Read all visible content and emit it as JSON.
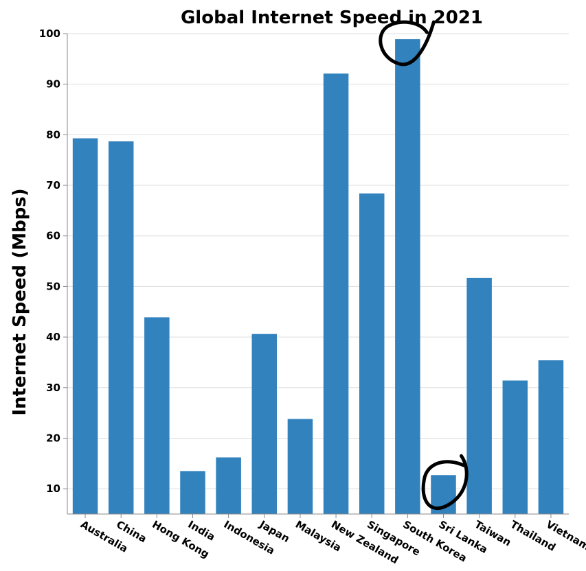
{
  "chart_data": {
    "type": "bar",
    "title": "Global Internet Speed in 2021",
    "xlabel": "",
    "ylabel": "Internet Speed (Mbps)",
    "categories": [
      "Australia",
      "China",
      "Hong Kong",
      "India",
      "Indonesia",
      "Japan",
      "Malaysia",
      "New Zealand",
      "Singapore",
      "South Korea",
      "Sri Lanka",
      "Taiwan",
      "Thailand",
      "Vietnam"
    ],
    "values": [
      79.3,
      78.7,
      43.9,
      13.5,
      16.2,
      40.6,
      23.8,
      92.1,
      68.4,
      98.9,
      12.7,
      51.7,
      31.4,
      35.4
    ],
    "ylim": [
      5,
      100
    ],
    "yticks": [
      "10",
      "20",
      "30",
      "40",
      "50",
      "60",
      "70",
      "80",
      "90",
      "100"
    ],
    "grid": "horizontal",
    "legend": "none",
    "bar_color": "#3182bd",
    "annotations": [
      {
        "type": "hand-drawn-circle",
        "target": "South Korea"
      },
      {
        "type": "hand-drawn-circle",
        "target": "Sri Lanka"
      }
    ]
  }
}
